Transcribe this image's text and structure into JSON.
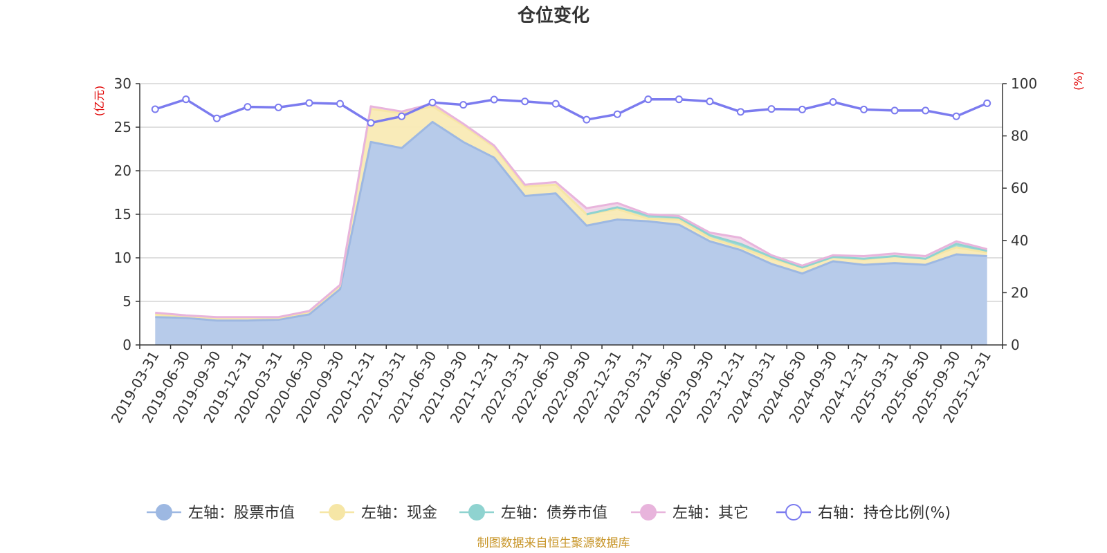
{
  "chart_data": {
    "type": "area",
    "title": "仓位变化",
    "left_unit": "(亿元)",
    "right_unit": "(%)",
    "source": "制图数据来自恒生聚源数据库",
    "colors": {
      "stock": "#9db8e2",
      "stock_fill": "#b7cbea",
      "cash": "#f6e6a6",
      "cash_fill": "#f9eab5",
      "bond": "#8fd3d0",
      "bond_fill": "#9fd9d5",
      "other": "#e8b4dc",
      "other_fill": "#f0d6e8",
      "ratio": "#7b7bef",
      "unit": "#e00000",
      "source": "#c8962a"
    },
    "left_axis": {
      "min": 0,
      "max": 30,
      "ticks": [
        0,
        5,
        10,
        15,
        20,
        25,
        30
      ]
    },
    "right_axis": {
      "min": 0,
      "max": 100,
      "ticks": [
        0,
        20,
        40,
        60,
        80,
        100
      ]
    },
    "categories": [
      "2019-03-31",
      "2019-06-30",
      "2019-09-30",
      "2019-12-31",
      "2020-03-31",
      "2020-06-30",
      "2020-09-30",
      "2020-12-31",
      "2021-03-31",
      "2021-06-30",
      "2021-09-30",
      "2021-12-31",
      "2022-03-31",
      "2022-06-30",
      "2022-09-30",
      "2022-12-31",
      "2023-03-31",
      "2023-06-30",
      "2023-09-30",
      "2023-12-31",
      "2024-03-31",
      "2024-06-30",
      "2024-09-30",
      "2024-12-31",
      "2025-03-31",
      "2025-06-30",
      "2025-09-30",
      "2025-12-31"
    ],
    "series": [
      {
        "key": "stock",
        "name": "左轴：股票市值",
        "axis": "left",
        "values": [
          3.2,
          3.1,
          2.8,
          2.8,
          2.9,
          3.5,
          6.4,
          23.3,
          22.6,
          25.6,
          23.3,
          21.5,
          17.1,
          17.4,
          13.7,
          14.4,
          14.2,
          13.8,
          11.9,
          10.9,
          9.3,
          8.2,
          9.6,
          9.2,
          9.4,
          9.2,
          10.4,
          10.2
        ]
      },
      {
        "key": "cash",
        "name": "左轴：现金",
        "axis": "left",
        "values": [
          0.3,
          0.2,
          0.3,
          0.3,
          0.2,
          0.3,
          0.4,
          3.8,
          4.0,
          1.8,
          1.9,
          1.2,
          1.1,
          1.0,
          1.3,
          1.2,
          0.3,
          0.6,
          0.4,
          0.3,
          0.6,
          0.7,
          0.5,
          0.6,
          0.8,
          0.7,
          0.8,
          0.4
        ]
      },
      {
        "key": "bond",
        "name": "左轴：债券市值",
        "axis": "left",
        "values": [
          0,
          0,
          0,
          0,
          0,
          0,
          0,
          0,
          0,
          0,
          0,
          0,
          0,
          0,
          0,
          0.2,
          0.4,
          0.2,
          0.3,
          0.4,
          0.2,
          0,
          0,
          0.1,
          0,
          0,
          0.4,
          0.2
        ]
      },
      {
        "key": "other",
        "name": "左轴：其它",
        "axis": "left",
        "values": [
          0.2,
          0.1,
          0.1,
          0.1,
          0.1,
          0.1,
          0.1,
          0.3,
          0.2,
          0.3,
          0.2,
          0.2,
          0.2,
          0.3,
          0.7,
          0.5,
          0.1,
          0.2,
          0.3,
          0.7,
          0.2,
          0.2,
          0.2,
          0.3,
          0.3,
          0.3,
          0.3,
          0.2
        ]
      },
      {
        "key": "ratio",
        "name": "右轴：持仓比例(%)",
        "axis": "right",
        "values": [
          90.2,
          94.0,
          86.7,
          91.1,
          90.9,
          92.6,
          92.3,
          85.0,
          87.5,
          92.8,
          91.9,
          93.9,
          93.2,
          92.3,
          86.2,
          88.3,
          94.0,
          94.0,
          93.2,
          89.2,
          90.3,
          90.1,
          93.0,
          90.1,
          89.7,
          89.7,
          87.5,
          92.5
        ]
      }
    ]
  }
}
